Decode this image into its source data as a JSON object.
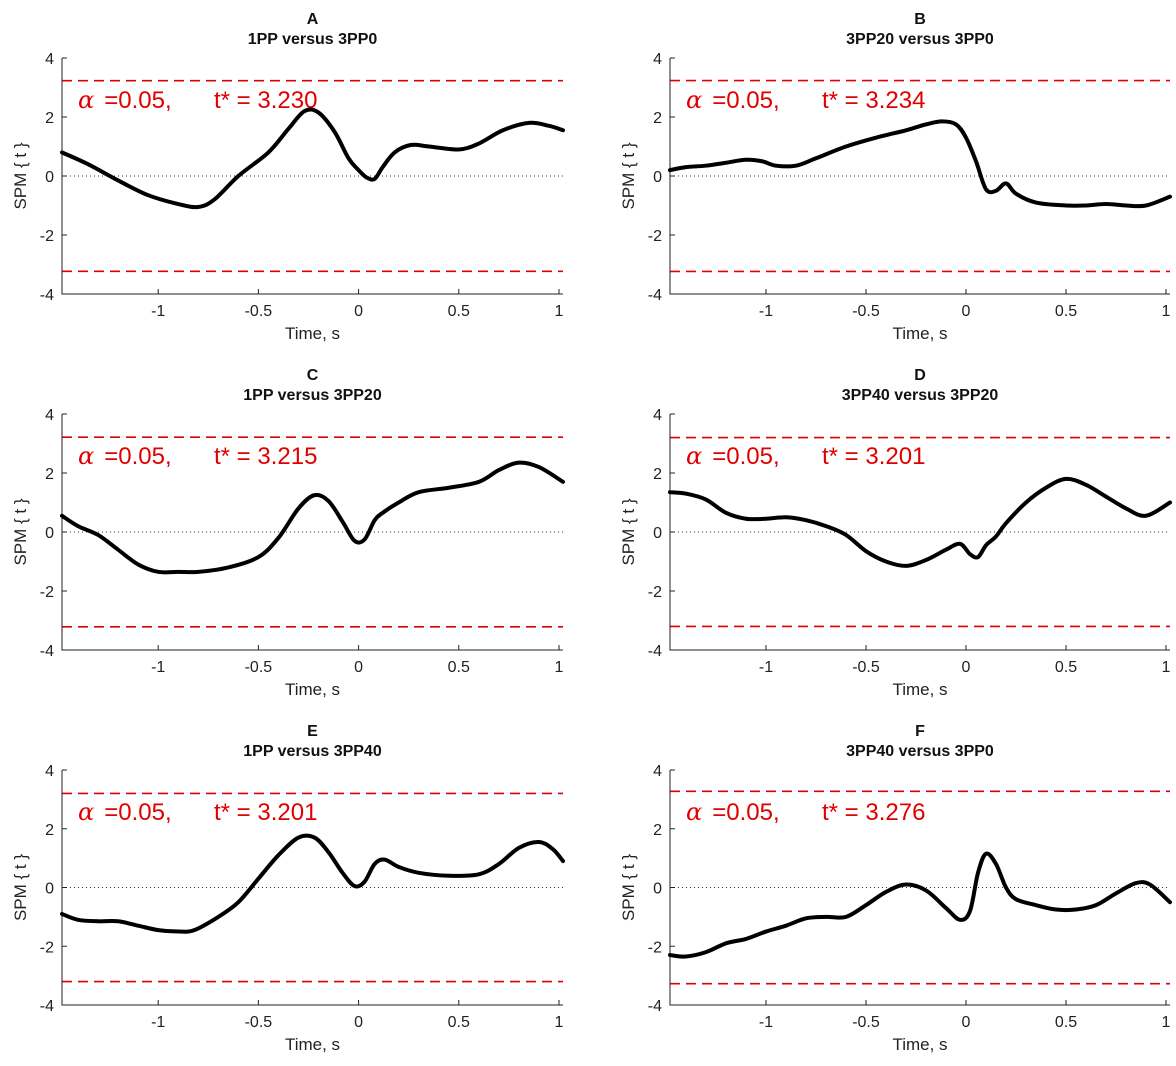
{
  "chart_data": [
    {
      "type": "line",
      "letter": "A",
      "title": "1PP versus 3PP0",
      "xlabel": "Time, s",
      "ylabel": "SPM { t }",
      "xlim": [
        -1.48,
        1.02
      ],
      "ylim": [
        -4,
        4
      ],
      "xticks": [
        -1,
        -0.5,
        0,
        0.5,
        1
      ],
      "xticklabels": [
        "-1",
        "-0.5",
        "0",
        "0.5",
        "1"
      ],
      "yticks": [
        -4,
        -2,
        0,
        2,
        4
      ],
      "yticklabels": [
        "-4",
        "-2",
        "0",
        "2",
        "4"
      ],
      "alpha_text": "=0.05,",
      "tstar_text": "t* = 3.230",
      "threshold": 3.23,
      "x": [
        -1.48,
        -1.35,
        -1.2,
        -1.05,
        -0.9,
        -0.8,
        -0.72,
        -0.6,
        -0.45,
        -0.35,
        -0.27,
        -0.2,
        -0.12,
        -0.05,
        0.0,
        0.04,
        0.08,
        0.12,
        0.18,
        0.26,
        0.35,
        0.5,
        0.6,
        0.72,
        0.85,
        0.95,
        1.02
      ],
      "y": [
        0.8,
        0.4,
        -0.15,
        -0.65,
        -0.95,
        -1.05,
        -0.8,
        0.0,
        0.8,
        1.6,
        2.2,
        2.15,
        1.5,
        0.6,
        0.2,
        -0.05,
        -0.1,
        0.3,
        0.8,
        1.05,
        1.0,
        0.9,
        1.1,
        1.55,
        1.8,
        1.7,
        1.55
      ]
    },
    {
      "type": "line",
      "letter": "B",
      "title": "3PP20 versus 3PP0",
      "xlabel": "Time, s",
      "ylabel": "SPM { t }",
      "xlim": [
        -1.48,
        1.02
      ],
      "ylim": [
        -4,
        4
      ],
      "xticks": [
        -1,
        -0.5,
        0,
        0.5,
        1
      ],
      "xticklabels": [
        "-1",
        "-0.5",
        "0",
        "0.5",
        "1"
      ],
      "yticks": [
        -4,
        -2,
        0,
        2,
        4
      ],
      "yticklabels": [
        "-4",
        "-2",
        "0",
        "2",
        "4"
      ],
      "alpha_text": "=0.05,",
      "tstar_text": "t* = 3.234",
      "threshold": 3.234,
      "x": [
        -1.48,
        -1.4,
        -1.3,
        -1.2,
        -1.1,
        -1.02,
        -0.95,
        -0.85,
        -0.75,
        -0.6,
        -0.45,
        -0.3,
        -0.2,
        -0.12,
        -0.05,
        0.0,
        0.05,
        0.1,
        0.15,
        0.2,
        0.25,
        0.35,
        0.5,
        0.6,
        0.7,
        0.8,
        0.9,
        1.02
      ],
      "y": [
        0.2,
        0.3,
        0.35,
        0.45,
        0.55,
        0.5,
        0.35,
        0.35,
        0.6,
        1.0,
        1.3,
        1.55,
        1.75,
        1.85,
        1.75,
        1.3,
        0.5,
        -0.45,
        -0.5,
        -0.25,
        -0.6,
        -0.9,
        -1.0,
        -1.0,
        -0.95,
        -1.0,
        -1.0,
        -0.7
      ]
    },
    {
      "type": "line",
      "letter": "C",
      "title": "1PP versus 3PP20",
      "xlabel": "Time, s",
      "ylabel": "SPM { t }",
      "xlim": [
        -1.48,
        1.02
      ],
      "ylim": [
        -4,
        4
      ],
      "xticks": [
        -1,
        -0.5,
        0,
        0.5,
        1
      ],
      "xticklabels": [
        "-1",
        "-0.5",
        "0",
        "0.5",
        "1"
      ],
      "yticks": [
        -4,
        -2,
        0,
        2,
        4
      ],
      "yticklabels": [
        "-4",
        "-2",
        "0",
        "2",
        "4"
      ],
      "alpha_text": "=0.05,",
      "tstar_text": "t* = 3.215",
      "threshold": 3.215,
      "x": [
        -1.48,
        -1.4,
        -1.3,
        -1.2,
        -1.1,
        -1.0,
        -0.9,
        -0.8,
        -0.65,
        -0.5,
        -0.4,
        -0.3,
        -0.22,
        -0.15,
        -0.08,
        -0.02,
        0.03,
        0.08,
        0.12,
        0.2,
        0.3,
        0.45,
        0.6,
        0.7,
        0.8,
        0.9,
        1.02
      ],
      "y": [
        0.55,
        0.2,
        -0.1,
        -0.6,
        -1.1,
        -1.35,
        -1.35,
        -1.35,
        -1.2,
        -0.85,
        -0.2,
        0.8,
        1.25,
        1.05,
        0.35,
        -0.3,
        -0.25,
        0.4,
        0.65,
        1.0,
        1.35,
        1.5,
        1.7,
        2.1,
        2.35,
        2.2,
        1.7
      ]
    },
    {
      "type": "line",
      "letter": "D",
      "title": "3PP40 versus 3PP20",
      "xlabel": "Time, s",
      "ylabel": "SPM { t }",
      "xlim": [
        -1.48,
        1.02
      ],
      "ylim": [
        -4,
        4
      ],
      "xticks": [
        -1,
        -0.5,
        0,
        0.5,
        1
      ],
      "xticklabels": [
        "-1",
        "-0.5",
        "0",
        "0.5",
        "1"
      ],
      "yticks": [
        -4,
        -2,
        0,
        2,
        4
      ],
      "yticklabels": [
        "-4",
        "-2",
        "0",
        "2",
        "4"
      ],
      "alpha_text": "=0.05,",
      "tstar_text": "t* = 3.201",
      "threshold": 3.201,
      "x": [
        -1.48,
        -1.4,
        -1.3,
        -1.2,
        -1.1,
        -1.0,
        -0.9,
        -0.8,
        -0.7,
        -0.6,
        -0.5,
        -0.4,
        -0.3,
        -0.2,
        -0.1,
        -0.03,
        0.02,
        0.06,
        0.1,
        0.15,
        0.2,
        0.3,
        0.4,
        0.5,
        0.6,
        0.7,
        0.8,
        0.9,
        1.02
      ],
      "y": [
        1.35,
        1.3,
        1.1,
        0.65,
        0.45,
        0.45,
        0.5,
        0.4,
        0.2,
        -0.1,
        -0.65,
        -1.0,
        -1.15,
        -0.95,
        -0.6,
        -0.4,
        -0.75,
        -0.85,
        -0.45,
        -0.15,
        0.3,
        1.0,
        1.5,
        1.8,
        1.6,
        1.2,
        0.8,
        0.55,
        1.0
      ]
    },
    {
      "type": "line",
      "letter": "E",
      "title": "1PP versus 3PP40",
      "xlabel": "Time, s",
      "ylabel": "SPM { t }",
      "xlim": [
        -1.48,
        1.02
      ],
      "ylim": [
        -4,
        4
      ],
      "xticks": [
        -1,
        -0.5,
        0,
        0.5,
        1
      ],
      "xticklabels": [
        "-1",
        "-0.5",
        "0",
        "0.5",
        "1"
      ],
      "yticks": [
        -4,
        -2,
        0,
        2,
        4
      ],
      "yticklabels": [
        "-4",
        "-2",
        "0",
        "2",
        "4"
      ],
      "alpha_text": "=0.05,",
      "tstar_text": "t* = 3.201",
      "threshold": 3.201,
      "x": [
        -1.48,
        -1.4,
        -1.3,
        -1.2,
        -1.1,
        -1.0,
        -0.9,
        -0.82,
        -0.7,
        -0.6,
        -0.5,
        -0.4,
        -0.3,
        -0.22,
        -0.15,
        -0.08,
        -0.02,
        0.03,
        0.08,
        0.13,
        0.2,
        0.3,
        0.45,
        0.6,
        0.7,
        0.8,
        0.9,
        0.97,
        1.02
      ],
      "y": [
        -0.9,
        -1.1,
        -1.15,
        -1.15,
        -1.3,
        -1.45,
        -1.5,
        -1.45,
        -1.0,
        -0.5,
        0.3,
        1.1,
        1.7,
        1.7,
        1.2,
        0.5,
        0.05,
        0.2,
        0.8,
        0.95,
        0.7,
        0.5,
        0.4,
        0.45,
        0.8,
        1.35,
        1.55,
        1.3,
        0.9
      ]
    },
    {
      "type": "line",
      "letter": "F",
      "title": "3PP40 versus 3PP0",
      "xlabel": "Time, s",
      "ylabel": "SPM { t }",
      "xlim": [
        -1.48,
        1.02
      ],
      "ylim": [
        -4,
        4
      ],
      "xticks": [
        -1,
        -0.5,
        0,
        0.5,
        1
      ],
      "xticklabels": [
        "-1",
        "-0.5",
        "0",
        "0.5",
        "1"
      ],
      "yticks": [
        -4,
        -2,
        0,
        2,
        4
      ],
      "yticklabels": [
        "-4",
        "-2",
        "0",
        "2",
        "4"
      ],
      "alpha_text": "=0.05,",
      "tstar_text": "t* = 3.276",
      "threshold": 3.276,
      "x": [
        -1.48,
        -1.4,
        -1.3,
        -1.2,
        -1.1,
        -1.0,
        -0.9,
        -0.8,
        -0.7,
        -0.6,
        -0.5,
        -0.4,
        -0.3,
        -0.2,
        -0.1,
        -0.03,
        0.02,
        0.06,
        0.1,
        0.15,
        0.2,
        0.25,
        0.35,
        0.45,
        0.55,
        0.65,
        0.75,
        0.85,
        0.92,
        1.02
      ],
      "y": [
        -2.3,
        -2.35,
        -2.2,
        -1.9,
        -1.75,
        -1.5,
        -1.3,
        -1.05,
        -1.0,
        -1.0,
        -0.6,
        -0.15,
        0.1,
        -0.1,
        -0.7,
        -1.1,
        -0.8,
        0.5,
        1.15,
        0.8,
        0.0,
        -0.4,
        -0.6,
        -0.75,
        -0.75,
        -0.6,
        -0.2,
        0.15,
        0.1,
        -0.5
      ]
    }
  ]
}
